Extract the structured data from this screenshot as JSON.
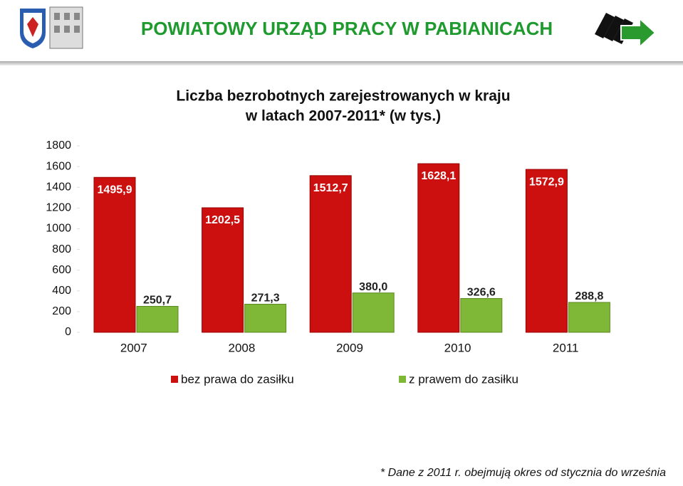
{
  "header": {
    "title": "POWIATOWY URZĄD PRACY W PABIANICACH"
  },
  "chart_data": {
    "type": "bar",
    "title": [
      "Liczba bezrobotnych zarejestrowanych w kraju",
      "w latach 2007-2011* (w tys.)"
    ],
    "categories": [
      "2007",
      "2008",
      "2009",
      "2010",
      "2011"
    ],
    "series": [
      {
        "name": "bez prawa do zasiłku",
        "color": "#cc1010",
        "values": [
          1495.9,
          1202.5,
          1512.7,
          1628.1,
          1572.9
        ],
        "value_labels": [
          "1495,9",
          "1202,5",
          "1512,7",
          "1628,1",
          "1572,9"
        ]
      },
      {
        "name": "z prawem do zasiłku",
        "color": "#7fb736",
        "values": [
          250.7,
          271.3,
          380.0,
          326.6,
          288.8
        ],
        "value_labels": [
          "250,7",
          "271,3",
          "380,0",
          "326,6",
          "288,8"
        ]
      }
    ],
    "ylim": [
      0,
      1800
    ],
    "yticks": [
      0,
      200,
      400,
      600,
      800,
      1000,
      1200,
      1400,
      1600,
      1800
    ],
    "grid": false,
    "legend": "bottom"
  },
  "footnote": "* Dane z 2011 r. obejmują okres od stycznia do września"
}
